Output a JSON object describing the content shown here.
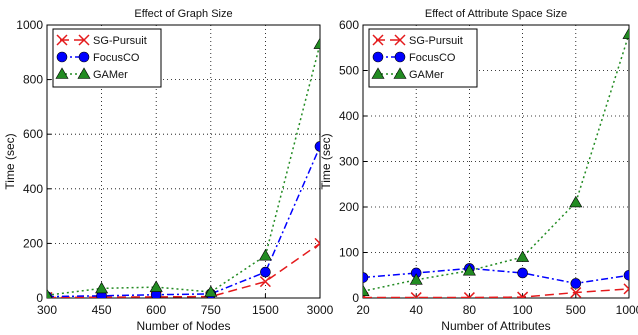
{
  "chart_data": [
    {
      "type": "line",
      "title": "Effect of Graph Size",
      "xlabel": "Number of Nodes",
      "ylabel": "Time (sec)",
      "categories": [
        "300",
        "450",
        "600",
        "750",
        "1500",
        "3000"
      ],
      "ylim": [
        0,
        1000
      ],
      "yticks": [
        "0",
        "200",
        "400",
        "600",
        "800",
        "1000"
      ],
      "grid": true,
      "legend": "top-left",
      "series": [
        {
          "name": "SG-Pursuit",
          "values": [
            2,
            3,
            4,
            5,
            60,
            200
          ],
          "color": "#e41a1c",
          "marker": "x",
          "line": "dashed"
        },
        {
          "name": "FocusCO",
          "values": [
            5,
            8,
            12,
            15,
            95,
            555
          ],
          "color": "#0000ff",
          "marker": "circle",
          "line": "dashdot"
        },
        {
          "name": "GAMer",
          "values": [
            10,
            35,
            40,
            22,
            155,
            930
          ],
          "color": "#228b22",
          "marker": "triangle",
          "line": "dotted"
        }
      ]
    },
    {
      "type": "line",
      "title": "Effect of Attribute Space Size",
      "xlabel": "Number of Attributes",
      "ylabel": "Time (sec)",
      "categories": [
        "20",
        "40",
        "80",
        "100",
        "500",
        "1000"
      ],
      "ylim": [
        0,
        600
      ],
      "yticks": [
        "0",
        "100",
        "200",
        "300",
        "400",
        "500",
        "600"
      ],
      "grid": true,
      "legend": "top-left",
      "series": [
        {
          "name": "SG-Pursuit",
          "values": [
            1,
            1,
            1,
            2,
            12,
            20
          ],
          "color": "#e41a1c",
          "marker": "x",
          "line": "dashed"
        },
        {
          "name": "FocusCO",
          "values": [
            45,
            55,
            65,
            55,
            32,
            50
          ],
          "color": "#0000ff",
          "marker": "circle",
          "line": "dashdot"
        },
        {
          "name": "GAMer",
          "values": [
            15,
            40,
            60,
            90,
            210,
            580
          ],
          "color": "#228b22",
          "marker": "triangle",
          "line": "dotted"
        }
      ]
    }
  ]
}
